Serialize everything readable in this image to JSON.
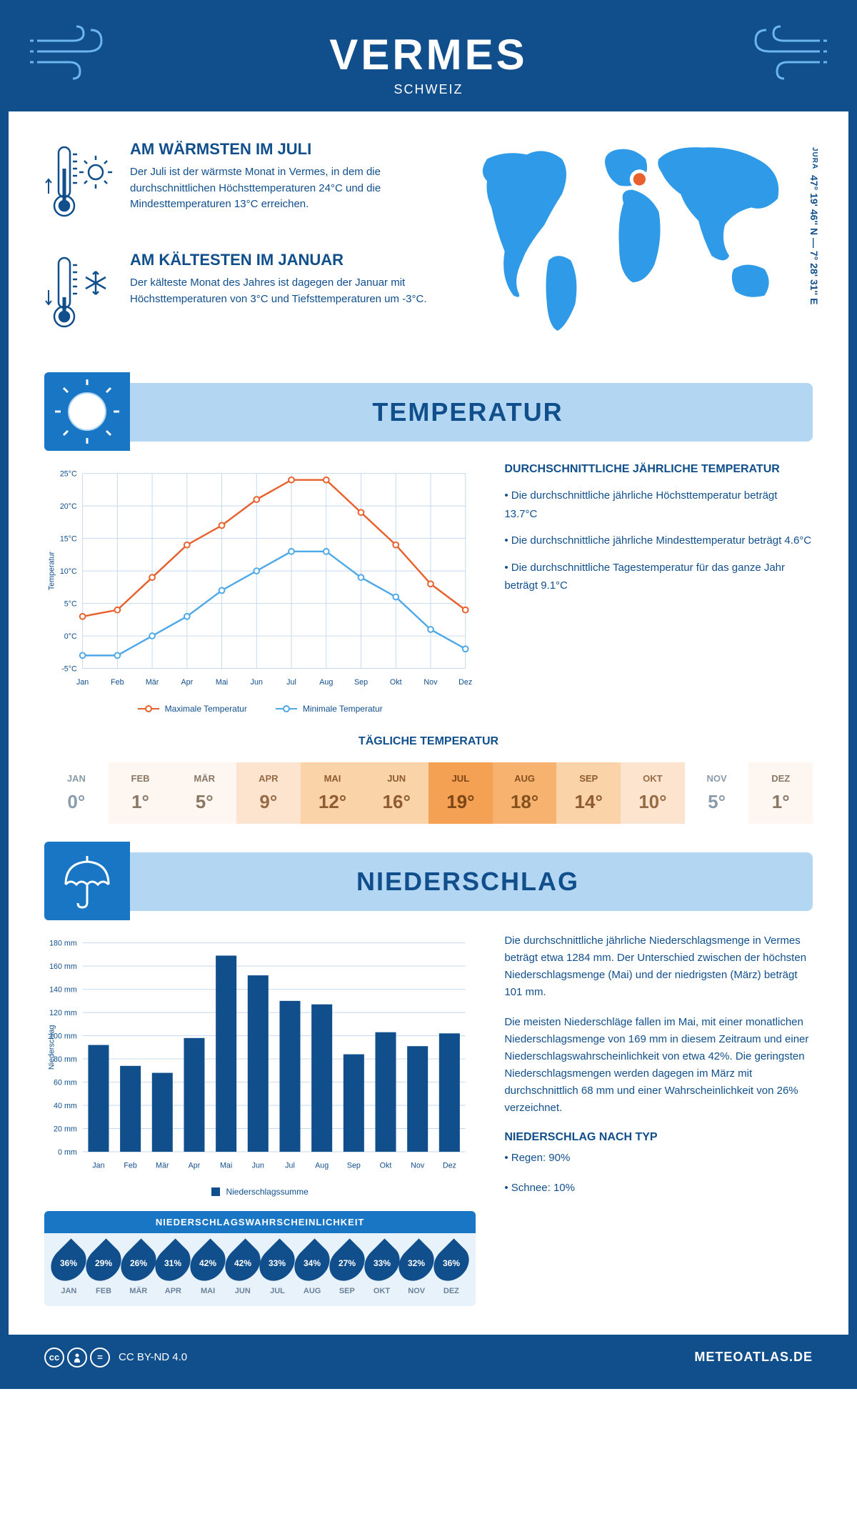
{
  "header": {
    "title": "VERMES",
    "subtitle": "SCHWEIZ"
  },
  "coords": {
    "lat_lon": "47° 19' 46'' N — 7° 28' 31'' E",
    "region": "JURA"
  },
  "facts": {
    "warm": {
      "title": "AM WÄRMSTEN IM JULI",
      "text": "Der Juli ist der wärmste Monat in Vermes, in dem die durchschnittlichen Höchsttemperaturen 24°C und die Mindesttemperaturen 13°C erreichen."
    },
    "cold": {
      "title": "AM KÄLTESTEN IM JANUAR",
      "text": "Der kälteste Monat des Jahres ist dagegen der Januar mit Höchsttemperaturen von 3°C und Tiefsttemperaturen um -3°C."
    }
  },
  "sections": {
    "temperature": "TEMPERATUR",
    "precipitation": "NIEDERSCHLAG"
  },
  "temp_chart": {
    "type": "line",
    "months": [
      "Jan",
      "Feb",
      "Mär",
      "Apr",
      "Mai",
      "Jun",
      "Jul",
      "Aug",
      "Sep",
      "Okt",
      "Nov",
      "Dez"
    ],
    "max_values": [
      3,
      4,
      9,
      14,
      17,
      21,
      24,
      24,
      19,
      14,
      8,
      4
    ],
    "min_values": [
      -3,
      -3,
      0,
      3,
      7,
      10,
      13,
      13,
      9,
      6,
      1,
      -2
    ],
    "max_color": "#e8602c",
    "min_color": "#4fa9e8",
    "ylim": [
      -5,
      25
    ],
    "ytick_step": 5,
    "ylabel": "Temperatur",
    "legend_max": "Maximale Temperatur",
    "legend_min": "Minimale Temperatur",
    "grid_color": "#c5d9ed",
    "line_width": 2.5,
    "marker": "circle"
  },
  "temp_info": {
    "heading": "DURCHSCHNITTLICHE JÄHRLICHE TEMPERATUR",
    "bullets": [
      "• Die durchschnittliche jährliche Höchsttemperatur beträgt 13.7°C",
      "• Die durchschnittliche jährliche Mindesttemperatur beträgt 4.6°C",
      "• Die durchschnittliche Tagestemperatur für das ganze Jahr beträgt 9.1°C"
    ]
  },
  "daily_temp": {
    "heading": "TÄGLICHE TEMPERATUR",
    "months": [
      "JAN",
      "FEB",
      "MÄR",
      "APR",
      "MAI",
      "JUN",
      "JUL",
      "AUG",
      "SEP",
      "OKT",
      "NOV",
      "DEZ"
    ],
    "values": [
      "0°",
      "1°",
      "5°",
      "9°",
      "12°",
      "16°",
      "19°",
      "18°",
      "14°",
      "10°",
      "5°",
      "1°"
    ],
    "bg_colors": [
      "#ffffff",
      "#fdf6f1",
      "#fdf6f1",
      "#fde4ce",
      "#fbd3a8",
      "#fbd3a8",
      "#f5a154",
      "#f7b26f",
      "#fbd3a8",
      "#fde4ce",
      "#ffffff",
      "#fdf6f1"
    ],
    "text_colors": [
      "#8a9bab",
      "#8a7865",
      "#8a7865",
      "#976b44",
      "#8e5c2e",
      "#8e5c2e",
      "#7d4617",
      "#85521f",
      "#8e5c2e",
      "#976b44",
      "#8a9bab",
      "#8a7865"
    ]
  },
  "precip_chart": {
    "type": "bar",
    "months": [
      "Jan",
      "Feb",
      "Mär",
      "Apr",
      "Mai",
      "Jun",
      "Jul",
      "Aug",
      "Sep",
      "Okt",
      "Nov",
      "Dez"
    ],
    "values": [
      92,
      74,
      68,
      98,
      169,
      152,
      130,
      127,
      84,
      103,
      91,
      102
    ],
    "bar_color": "#114f8c",
    "ylim": [
      0,
      180
    ],
    "ytick_step": 20,
    "ylabel": "Niederschlag",
    "legend": "Niederschlagssumme",
    "grid_color": "#c5d9ed",
    "bar_width": 0.65
  },
  "precip_text": {
    "p1": "Die durchschnittliche jährliche Niederschlagsmenge in Vermes beträgt etwa 1284 mm. Der Unterschied zwischen der höchsten Niederschlagsmenge (Mai) und der niedrigsten (März) beträgt 101 mm.",
    "p2": "Die meisten Niederschläge fallen im Mai, mit einer monatlichen Niederschlagsmenge von 169 mm in diesem Zeitraum und einer Niederschlagswahrscheinlichkeit von etwa 42%. Die geringsten Niederschlagsmengen werden dagegen im März mit durchschnittlich 68 mm und einer Wahrscheinlichkeit von 26% verzeichnet.",
    "type_heading": "NIEDERSCHLAG NACH TYP",
    "type_rain": "• Regen: 90%",
    "type_snow": "• Schnee: 10%"
  },
  "prob": {
    "heading": "NIEDERSCHLAGSWAHRSCHEINLICHKEIT",
    "months": [
      "JAN",
      "FEB",
      "MÄR",
      "APR",
      "MAI",
      "JUN",
      "JUL",
      "AUG",
      "SEP",
      "OKT",
      "NOV",
      "DEZ"
    ],
    "values": [
      "36%",
      "29%",
      "26%",
      "31%",
      "42%",
      "42%",
      "33%",
      "34%",
      "27%",
      "33%",
      "32%",
      "36%"
    ]
  },
  "footer": {
    "license": "CC BY-ND 4.0",
    "site": "METEOATLAS.DE"
  },
  "colors": {
    "primary": "#114f8c",
    "secondary": "#1976c5",
    "light": "#b3d7f2",
    "accent_blue": "#2f9be8"
  }
}
